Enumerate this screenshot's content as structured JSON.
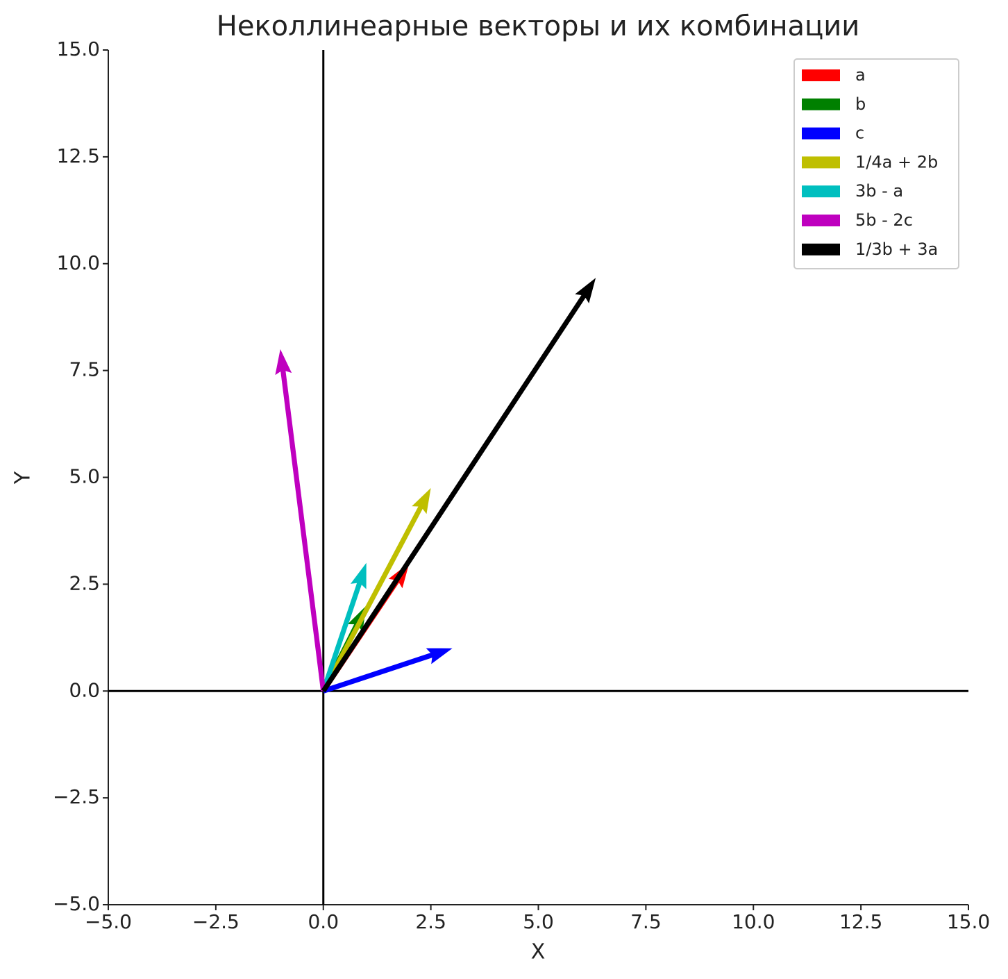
{
  "chart_data": {
    "type": "quiver",
    "title": "Неколлинеарные векторы и их комбинации",
    "x_label": "X",
    "y_label": "Y",
    "xlim": [
      -5,
      15
    ],
    "ylim": [
      -5,
      15
    ],
    "xticks": [
      {
        "value": -5,
        "label": "−5.0"
      },
      {
        "value": -2.5,
        "label": "−2.5"
      },
      {
        "value": 0,
        "label": "0.0"
      },
      {
        "value": 2.5,
        "label": "2.5"
      },
      {
        "value": 5,
        "label": "5.0"
      },
      {
        "value": 7.5,
        "label": "7.5"
      },
      {
        "value": 10,
        "label": "10.0"
      },
      {
        "value": 12.5,
        "label": "12.5"
      },
      {
        "value": 15,
        "label": "15.0"
      }
    ],
    "yticks": [
      {
        "value": -5,
        "label": "−5.0"
      },
      {
        "value": -2.5,
        "label": "−2.5"
      },
      {
        "value": 0,
        "label": "0.0"
      },
      {
        "value": 2.5,
        "label": "2.5"
      },
      {
        "value": 5,
        "label": "5.0"
      },
      {
        "value": 7.5,
        "label": "7.5"
      },
      {
        "value": 10,
        "label": "10.0"
      },
      {
        "value": 12.5,
        "label": "12.5"
      },
      {
        "value": 15,
        "label": "15.0"
      }
    ],
    "legend": "upper right",
    "series": [
      {
        "name": "a",
        "color": "#ff0000",
        "u": 2,
        "v": 3
      },
      {
        "name": "b",
        "color": "#008000",
        "u": 1,
        "v": 2
      },
      {
        "name": "c",
        "color": "#0000ff",
        "u": 3,
        "v": 1
      },
      {
        "name": "1/4a + 2b",
        "color": "#bfbf00",
        "u": 2.5,
        "v": 4.75
      },
      {
        "name": "3b - a",
        "color": "#00bfbf",
        "u": 1,
        "v": 3
      },
      {
        "name": "5b - 2c",
        "color": "#bf00bf",
        "u": -1,
        "v": 8
      },
      {
        "name": "1/3b + 3a",
        "color": "#000000",
        "u": 6.333,
        "v": 9.667
      }
    ]
  }
}
